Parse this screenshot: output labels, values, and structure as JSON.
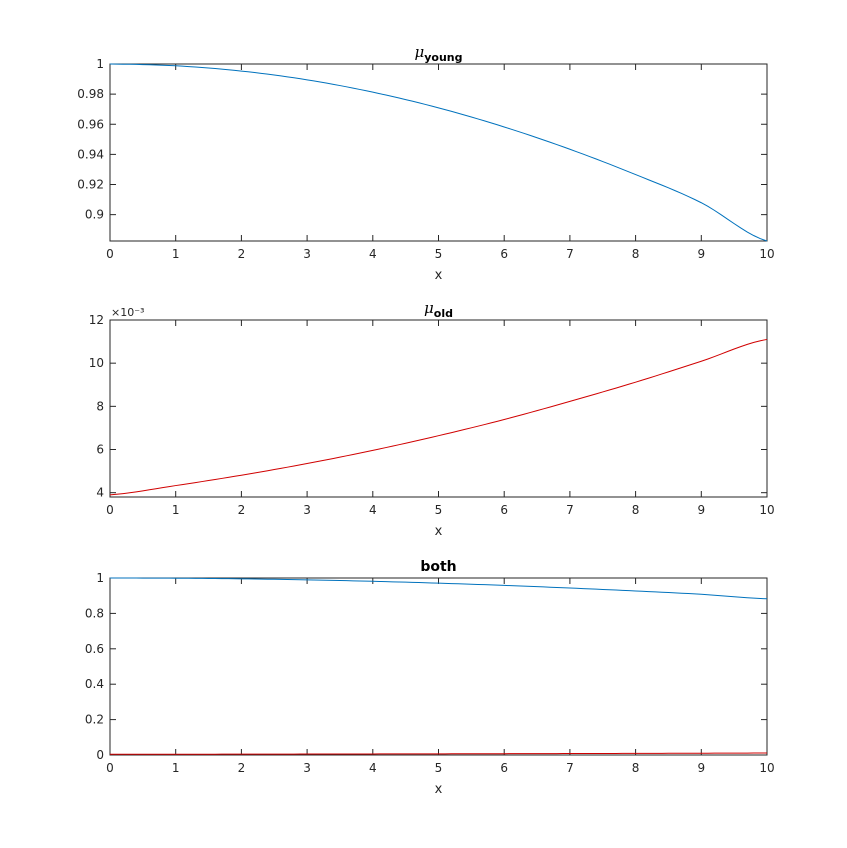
{
  "chart_data": [
    {
      "type": "line",
      "title": "μ_young",
      "title_symbol": "μ",
      "title_subscript": "young",
      "xlabel": "x",
      "ylabel": "",
      "xlim": [
        0,
        10
      ],
      "ylim": [
        0.8825,
        1.0
      ],
      "xticks": [
        "0",
        "1",
        "2",
        "3",
        "4",
        "5",
        "6",
        "7",
        "8",
        "9",
        "10"
      ],
      "yticks": [
        "0.9",
        "0.92",
        "0.94",
        "0.96",
        "0.98",
        "1"
      ],
      "ytick_values": [
        0.9,
        0.92,
        0.94,
        0.96,
        0.98,
        1.0
      ],
      "exponent_label": "",
      "grid": false,
      "series": [
        {
          "color": "#0072BD",
          "x": [
            0,
            1,
            2,
            3,
            4,
            5,
            6,
            7,
            8,
            9,
            10
          ],
          "y": [
            1.0,
            0.9988,
            0.9953,
            0.9895,
            0.9813,
            0.9709,
            0.9582,
            0.9434,
            0.9266,
            0.9079,
            0.8825
          ]
        }
      ]
    },
    {
      "type": "line",
      "title": "μ_old",
      "title_symbol": "μ",
      "title_subscript": "old",
      "xlabel": "x",
      "ylabel": "",
      "xlim": [
        0,
        10
      ],
      "ylim": [
        3.8,
        12
      ],
      "xticks": [
        "0",
        "1",
        "2",
        "3",
        "4",
        "5",
        "6",
        "7",
        "8",
        "9",
        "10"
      ],
      "yticks": [
        "4",
        "6",
        "8",
        "10",
        "12"
      ],
      "ytick_values": [
        4,
        6,
        8,
        10,
        12
      ],
      "exponent_label": "×10⁻³",
      "grid": false,
      "series": [
        {
          "color": "#D00000",
          "x": [
            0,
            1,
            2,
            3,
            4,
            5,
            6,
            7,
            8,
            9,
            10
          ],
          "y": [
            3.9,
            4.33,
            4.81,
            5.35,
            5.96,
            6.64,
            7.39,
            8.23,
            9.12,
            10.09,
            11.1
          ]
        }
      ]
    },
    {
      "type": "line",
      "title": "both",
      "xlabel": "x",
      "ylabel": "",
      "xlim": [
        0,
        10
      ],
      "ylim": [
        0,
        1
      ],
      "xticks": [
        "0",
        "1",
        "2",
        "3",
        "4",
        "5",
        "6",
        "7",
        "8",
        "9",
        "10"
      ],
      "yticks": [
        "0",
        "0.2",
        "0.4",
        "0.6",
        "0.8",
        "1"
      ],
      "ytick_values": [
        0,
        0.2,
        0.4,
        0.6,
        0.8,
        1.0
      ],
      "exponent_label": "",
      "grid": false,
      "series": [
        {
          "color": "#0072BD",
          "x": [
            0,
            1,
            2,
            3,
            4,
            5,
            6,
            7,
            8,
            9,
            10
          ],
          "y": [
            1.0,
            0.9988,
            0.9953,
            0.9895,
            0.9813,
            0.9709,
            0.9582,
            0.9434,
            0.9266,
            0.9079,
            0.8825
          ]
        },
        {
          "color": "#D00000",
          "x": [
            0,
            1,
            2,
            3,
            4,
            5,
            6,
            7,
            8,
            9,
            10
          ],
          "y": [
            0.0039,
            0.0043,
            0.0048,
            0.0054,
            0.006,
            0.0066,
            0.0074,
            0.0082,
            0.0091,
            0.0101,
            0.0111
          ]
        }
      ]
    }
  ]
}
